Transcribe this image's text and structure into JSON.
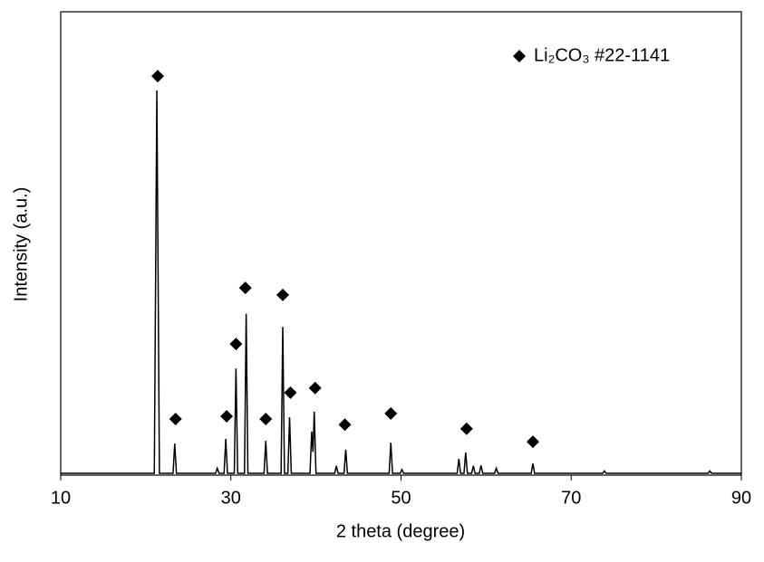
{
  "chart_data": {
    "type": "line",
    "xlabel": "2 theta (degree)",
    "ylabel": "Intensity (a.u.)",
    "xlim": [
      10,
      90
    ],
    "xticks": [
      10,
      30,
      50,
      70,
      90
    ],
    "ylim": [
      0,
      100
    ],
    "legend": "top-right",
    "series": [
      {
        "color": "#000000",
        "x": [
          10,
          21.0,
          21.3,
          21.6,
          23.2,
          23.4,
          23.6,
          28.2,
          28.4,
          28.6,
          29.2,
          29.4,
          29.6,
          30.4,
          30.6,
          30.8,
          31.6,
          31.8,
          32.0,
          33.9,
          34.1,
          34.3,
          35.9,
          36.1,
          36.3,
          36.7,
          36.9,
          37.1,
          39.3,
          39.5,
          39.65,
          39.8,
          40.0,
          42.2,
          42.4,
          42.6,
          43.3,
          43.5,
          43.7,
          48.6,
          48.8,
          49.0,
          49.9,
          50.1,
          50.3,
          56.6,
          56.8,
          57.0,
          57.4,
          57.6,
          57.8,
          58.3,
          58.5,
          58.7,
          59.2,
          59.4,
          59.6,
          61.0,
          61.2,
          61.4,
          65.3,
          65.5,
          65.7,
          73.7,
          73.9,
          74.1,
          86.1,
          86.3,
          86.5,
          90
        ],
        "values": [
          0.4,
          0.4,
          83,
          0.4,
          0.4,
          6.8,
          0.4,
          0.4,
          1.5,
          0.4,
          0.4,
          7.8,
          0.4,
          0.4,
          23,
          0.4,
          0.4,
          34.8,
          0.4,
          0.4,
          7.4,
          0.4,
          0.4,
          32,
          0.4,
          0.4,
          12.5,
          0.4,
          0.4,
          9.4,
          5,
          13.7,
          0.4,
          0.4,
          2,
          0.4,
          0.4,
          5.5,
          0.4,
          0.4,
          7,
          0.4,
          0.4,
          1.2,
          0.4,
          0.4,
          3.5,
          0.4,
          0.4,
          4.9,
          0.4,
          0.4,
          2,
          0.4,
          0.4,
          2.1,
          0.4,
          0.4,
          1.5,
          0.4,
          0.4,
          2.5,
          0.4,
          0.4,
          0.9,
          0.4,
          0.4,
          0.9,
          0.4,
          0.4
        ]
      },
      {
        "name": "Li₂CO₃ #22-1141",
        "color": "#000000",
        "marker": "diamond",
        "x": [
          21.4,
          23.5,
          29.5,
          30.6,
          31.7,
          34.1,
          36.1,
          37.0,
          39.9,
          43.4,
          48.8,
          57.7,
          65.5
        ],
        "values": [
          86.1,
          12.1,
          12.7,
          28.3,
          40.4,
          12.1,
          38.9,
          17.8,
          18.8,
          10.9,
          13.3,
          10.0,
          7.2
        ]
      }
    ]
  }
}
